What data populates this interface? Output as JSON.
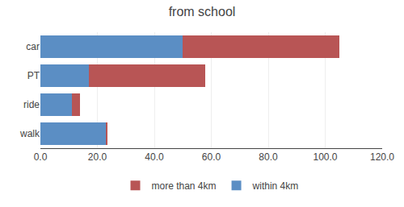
{
  "chart_data": {
    "type": "bar",
    "orientation": "horizontal",
    "stacked": true,
    "title": "from school",
    "categories": [
      "car",
      "PT",
      "ride",
      "walk"
    ],
    "series": [
      {
        "name": "within 4km",
        "color": "#5b8ec4",
        "values": [
          50.0,
          17.0,
          11.0,
          23.0
        ]
      },
      {
        "name": "more than 4km",
        "color": "#b85555",
        "values": [
          55.0,
          41.0,
          3.0,
          0.5
        ]
      }
    ],
    "xlim": [
      0,
      120
    ],
    "xticks": [
      {
        "value": 0,
        "label": "0.0"
      },
      {
        "value": 20,
        "label": "20.0"
      },
      {
        "value": 40,
        "label": "40.0"
      },
      {
        "value": 60,
        "label": "60.0"
      },
      {
        "value": 80,
        "label": "80.0"
      },
      {
        "value": 100,
        "label": "100.0"
      },
      {
        "value": 120,
        "label": "120.0"
      }
    ],
    "grid": true,
    "legend": "bottom"
  }
}
